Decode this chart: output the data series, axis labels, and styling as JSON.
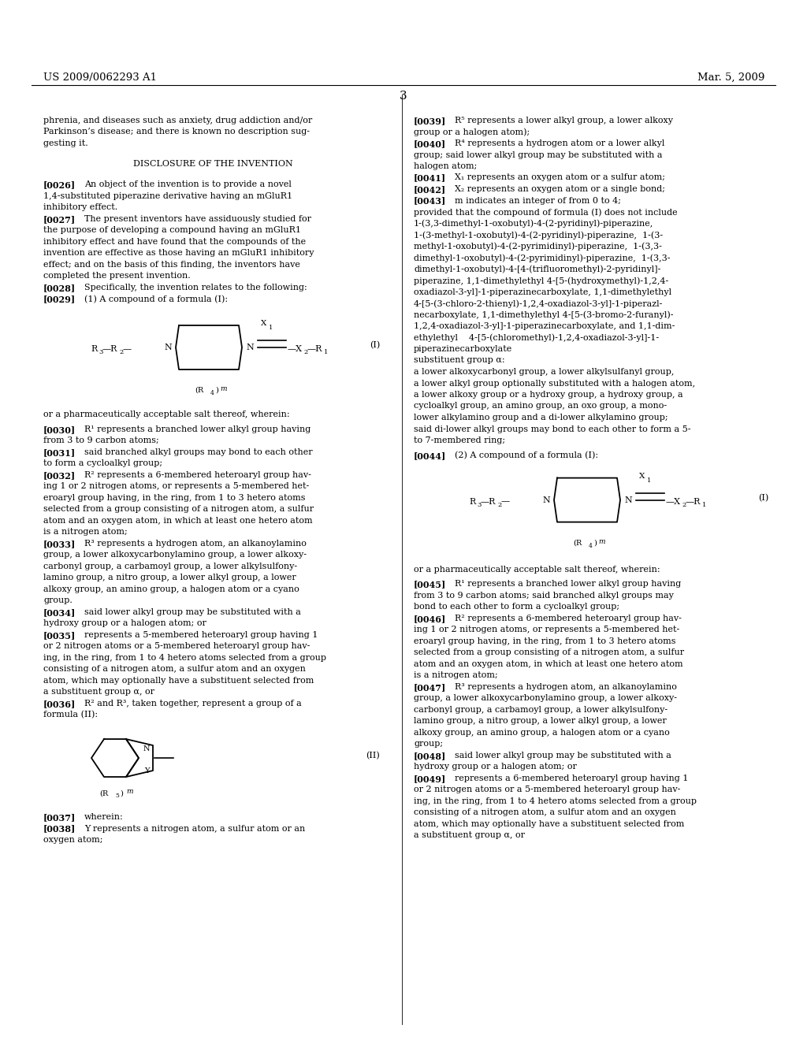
{
  "bg_color": "#ffffff",
  "header_left": "US 2009/0062293 A1",
  "header_right": "Mar. 5, 2009",
  "page_number": "3",
  "font_size": 8.0,
  "small_font": 6.0,
  "header_font": 9.5
}
